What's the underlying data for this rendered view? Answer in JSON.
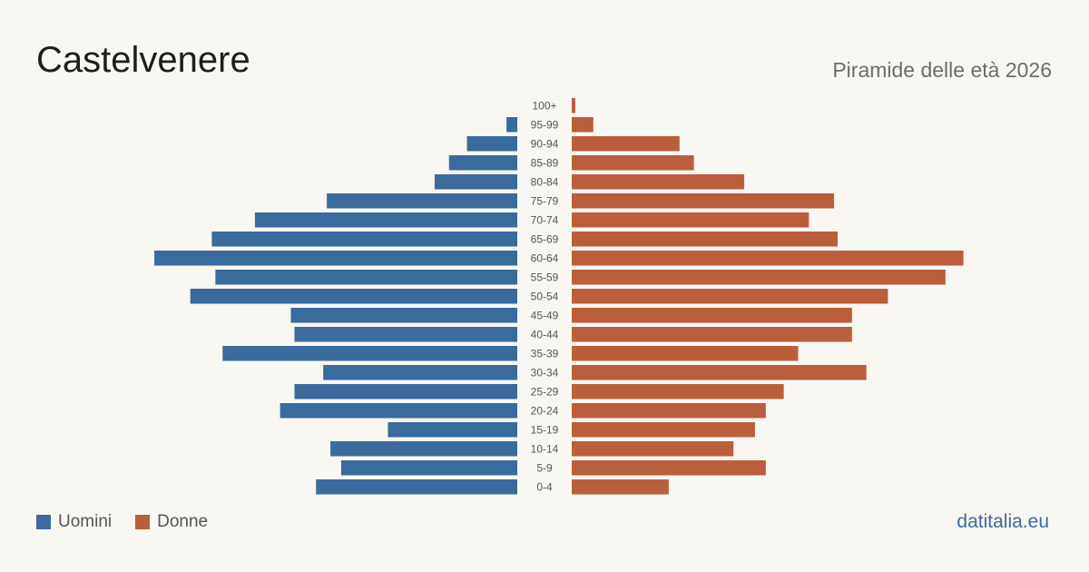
{
  "header": {
    "title": "Castelvenere",
    "subtitle": "Piramide delle età 2026"
  },
  "legend": {
    "men_label": "Uomini",
    "women_label": "Donne"
  },
  "footer": {
    "brand": "datitalia.eu"
  },
  "colors": {
    "background": "#f9f7f2",
    "men": "#3b6a9c",
    "women": "#bb5e3c",
    "age_label": "#555555"
  },
  "chart_data": {
    "type": "bar",
    "orientation": "horizontal-diverging",
    "categories": [
      "100+",
      "95-99",
      "90-94",
      "85-89",
      "80-84",
      "75-79",
      "70-74",
      "65-69",
      "60-64",
      "55-59",
      "50-54",
      "45-49",
      "40-44",
      "35-39",
      "30-34",
      "25-29",
      "20-24",
      "15-19",
      "10-14",
      "5-9",
      "0-4"
    ],
    "series": [
      {
        "name": "Uomini",
        "values": [
          0,
          3,
          14,
          19,
          23,
          53,
          73,
          85,
          101,
          84,
          91,
          63,
          62,
          82,
          54,
          62,
          66,
          36,
          52,
          49,
          56
        ]
      },
      {
        "name": "Donne",
        "values": [
          1,
          6,
          30,
          34,
          48,
          73,
          66,
          74,
          109,
          104,
          88,
          78,
          78,
          63,
          82,
          59,
          54,
          51,
          45,
          54,
          27
        ]
      }
    ],
    "xlim": [
      0,
      110
    ],
    "grid": false,
    "legend_position": "bottom-left"
  }
}
